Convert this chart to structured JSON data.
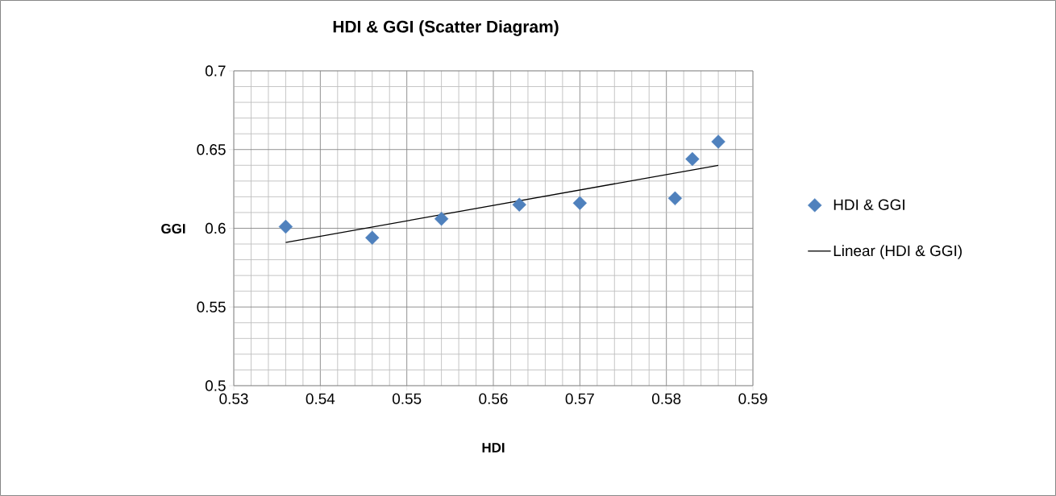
{
  "chart_data": {
    "type": "scatter",
    "title": "HDI & GGI (Scatter Diagram)",
    "xlabel": "HDI",
    "ylabel": "GGI",
    "xlim": [
      0.53,
      0.59
    ],
    "xticks": [
      0.53,
      0.54,
      0.55,
      0.56,
      0.57,
      0.58,
      0.59
    ],
    "ylim": [
      0.5,
      0.7
    ],
    "yticks": [
      0.5,
      0.55,
      0.6,
      0.65,
      0.7
    ],
    "grid": true,
    "legend": "right",
    "series": [
      {
        "name": "HDI & GGI",
        "marker": "diamond",
        "color": "#4f81bd",
        "x": [
          0.536,
          0.546,
          0.554,
          0.563,
          0.57,
          0.581,
          0.583,
          0.586
        ],
        "values": [
          0.601,
          0.594,
          0.606,
          0.615,
          0.616,
          0.619,
          0.644,
          0.655
        ]
      },
      {
        "name": "Linear (HDI & GGI)",
        "type": "line",
        "marker": "none",
        "color": "#000000",
        "x": [
          0.536,
          0.586
        ],
        "values": [
          0.591,
          0.64
        ]
      }
    ]
  }
}
